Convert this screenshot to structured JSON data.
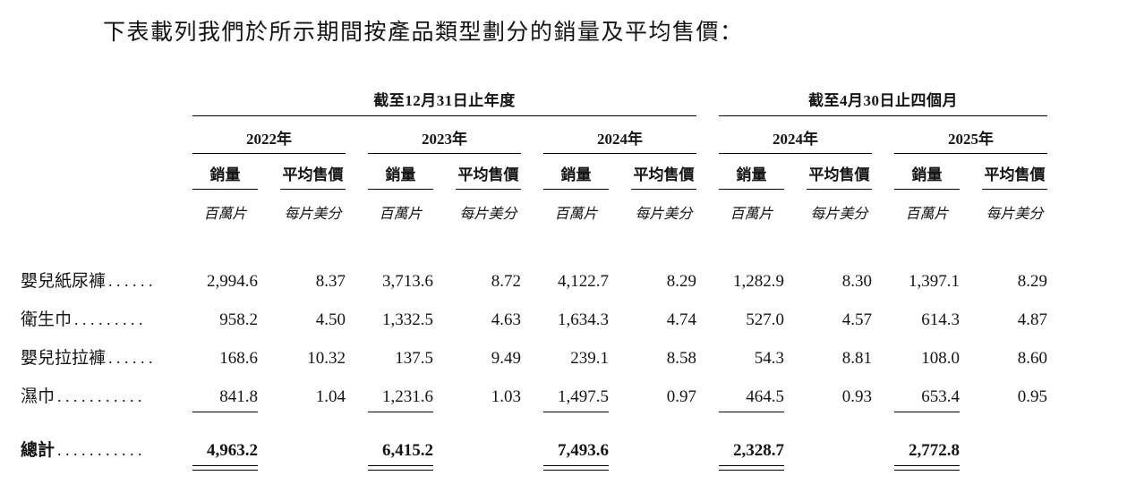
{
  "title": "下表載列我們於所示期間按產品類型劃分的銷量及平均售價：",
  "table": {
    "groups": [
      {
        "label": "截至12月31日止年度",
        "years": [
          "2022年",
          "2023年",
          "2024年"
        ]
      },
      {
        "label": "截至4月30日止四個月",
        "years": [
          "2024年",
          "2025年"
        ]
      }
    ],
    "col_headers": {
      "volume": "銷量",
      "asp": "平均售價"
    },
    "col_units": {
      "volume": "百萬片",
      "asp": "每片美分"
    },
    "rows": [
      {
        "label": "嬰兒紙尿褲",
        "dots": "......",
        "values": [
          "2,994.6",
          "8.37",
          "3,713.6",
          "8.72",
          "4,122.7",
          "8.29",
          "1,282.9",
          "8.30",
          "1,397.1",
          "8.29"
        ]
      },
      {
        "label": "衛生巾",
        "dots": ".........",
        "values": [
          "958.2",
          "4.50",
          "1,332.5",
          "4.63",
          "1,634.3",
          "4.74",
          "527.0",
          "4.57",
          "614.3",
          "4.87"
        ]
      },
      {
        "label": "嬰兒拉拉褲",
        "dots": "......",
        "values": [
          "168.6",
          "10.32",
          "137.5",
          "9.49",
          "239.1",
          "8.58",
          "54.3",
          "8.81",
          "108.0",
          "8.60"
        ]
      },
      {
        "label": "濕巾",
        "dots": "...........",
        "values": [
          "841.8",
          "1.04",
          "1,231.6",
          "1.03",
          "1,497.5",
          "0.97",
          "464.5",
          "0.93",
          "653.4",
          "0.95"
        ]
      }
    ],
    "total": {
      "label": "總計",
      "dots": "...........",
      "values": [
        "4,963.2",
        "",
        "6,415.2",
        "",
        "7,493.6",
        "",
        "2,328.7",
        "",
        "2,772.8",
        ""
      ]
    }
  }
}
